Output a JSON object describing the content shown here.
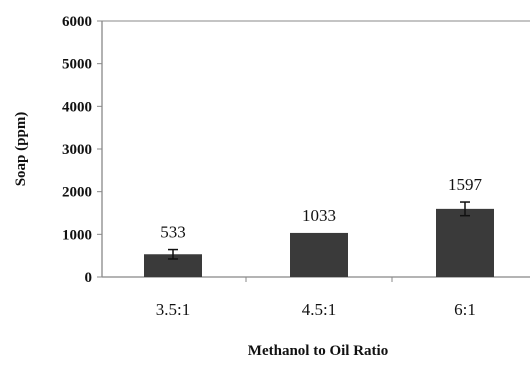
{
  "chart_data": {
    "type": "bar",
    "title": "",
    "xlabel": "Methanol to Oil Ratio",
    "ylabel": "Soap (ppm)",
    "categories": [
      "3.5:1",
      "4.5:1",
      "6:1"
    ],
    "values": [
      533,
      1033,
      1597
    ],
    "data_labels": [
      "533",
      "1033",
      "1597"
    ],
    "error": [
      110,
      0,
      160
    ],
    "ylim": [
      0,
      6000
    ],
    "yticks": [
      "0",
      "1000",
      "2000",
      "3000",
      "4000",
      "5000",
      "6000"
    ],
    "grid": false,
    "legend": "none",
    "colors": {
      "bar": "#3a3a3a",
      "axis": "#888888",
      "text": "#111111"
    }
  }
}
